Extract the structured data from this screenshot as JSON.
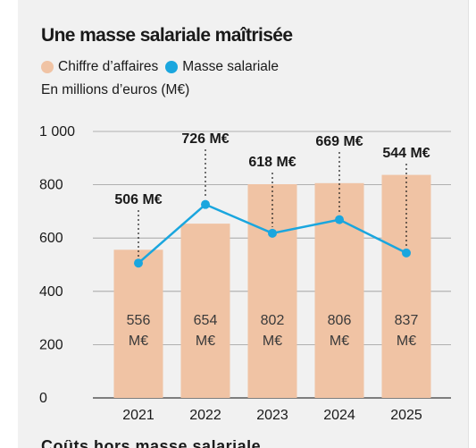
{
  "title": "Une masse salariale maîtrisée",
  "unit": "En millions d’euros (M€)",
  "legend": [
    {
      "label": "Chiffre d’affaires",
      "color": "#f0c3a4"
    },
    {
      "label": "Masse salariale",
      "color": "#1aa6de"
    }
  ],
  "footer_peek": "Coûts hors masse salariale",
  "chart_data": {
    "type": "bar",
    "categories": [
      "2021",
      "2022",
      "2023",
      "2024",
      "2025"
    ],
    "series": [
      {
        "name": "Chiffre d’affaires",
        "type": "bar",
        "values": [
          556,
          654,
          802,
          806,
          837
        ],
        "labels": [
          [
            "556",
            "M€"
          ],
          [
            "654",
            "M€"
          ],
          [
            "802",
            "M€"
          ],
          [
            "806",
            "M€"
          ],
          [
            "837",
            "M€"
          ]
        ]
      },
      {
        "name": "Masse salariale",
        "type": "line",
        "values": [
          506,
          726,
          618,
          669,
          544
        ],
        "labels": [
          "506 M€",
          "726 M€",
          "618 M€",
          "669 M€",
          "544 M€"
        ]
      }
    ],
    "yticks": [
      0,
      200,
      400,
      600,
      800,
      1000
    ],
    "ytick_labels": [
      "0",
      "200",
      "400",
      "600",
      "800",
      "1 000"
    ],
    "ylim": [
      0,
      1000
    ],
    "grid": true,
    "legend_position": "top-left"
  }
}
